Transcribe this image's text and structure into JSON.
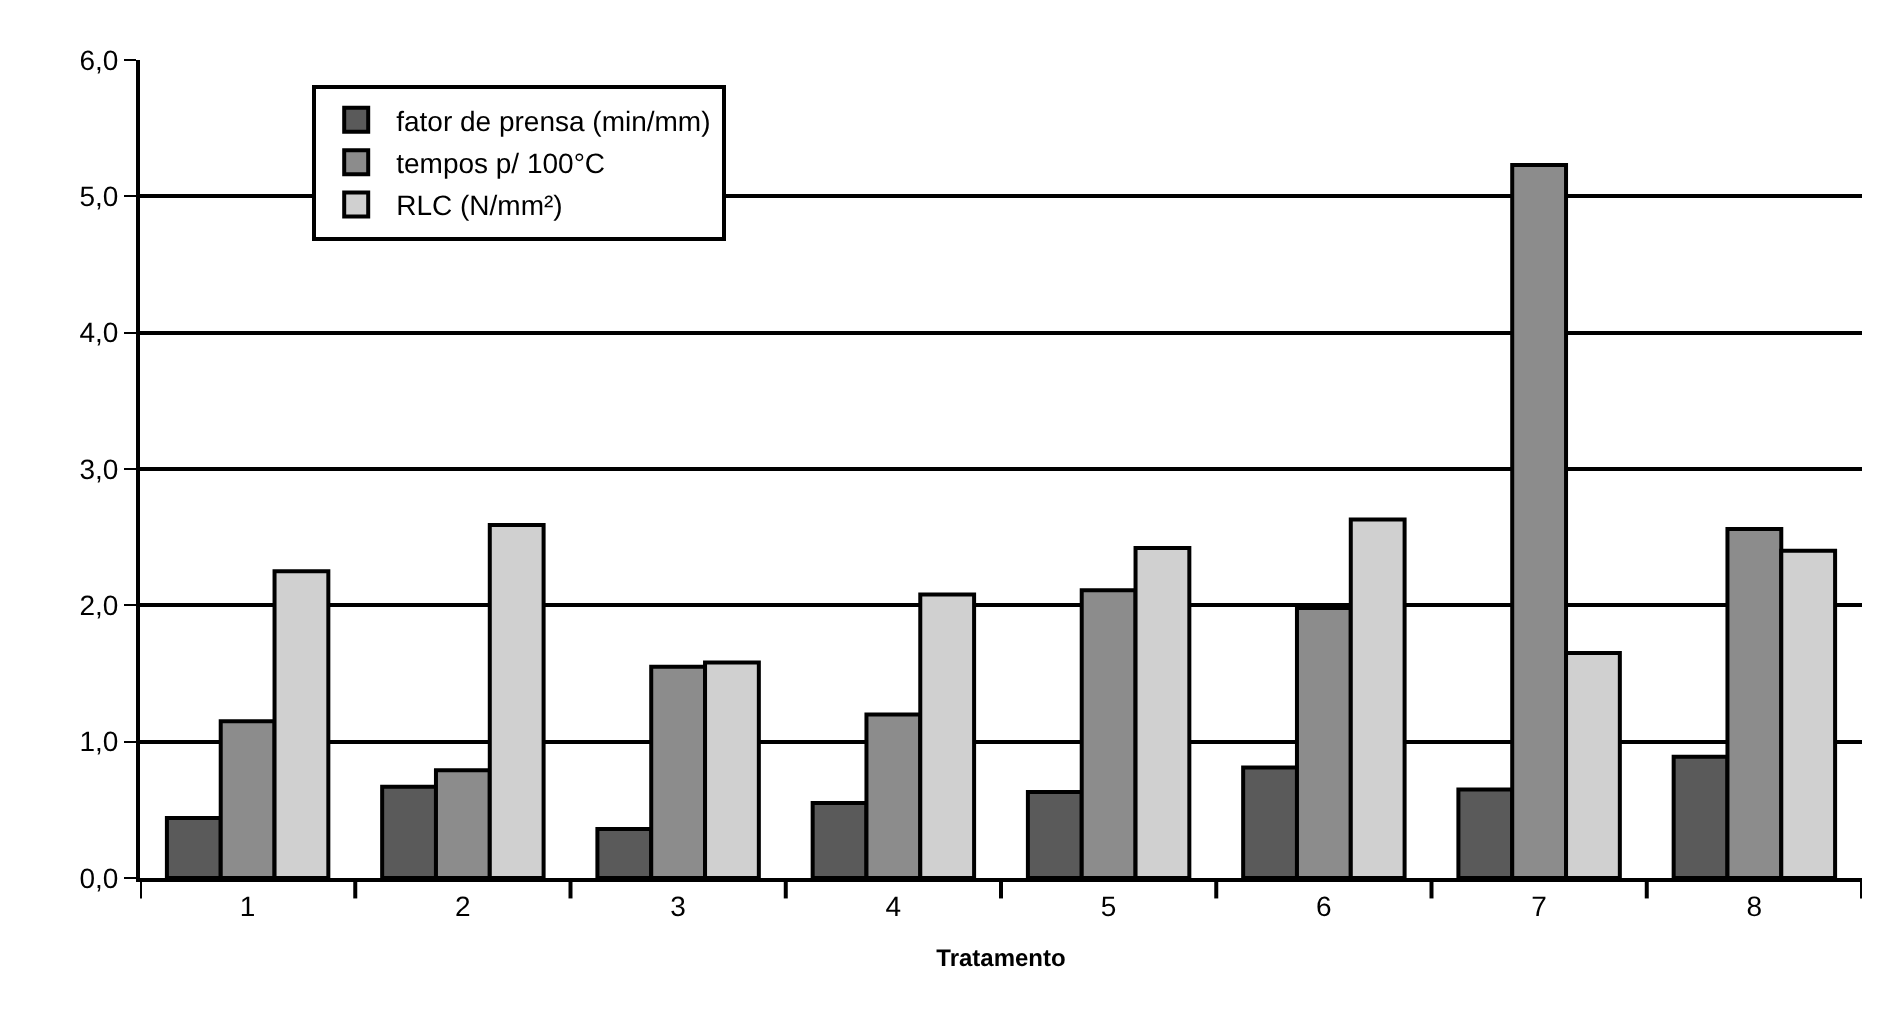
{
  "chart_data": {
    "type": "bar",
    "xlabel": "Tratamento",
    "categories": [
      "1",
      "2",
      "3",
      "4",
      "5",
      "6",
      "7",
      "8"
    ],
    "series": [
      {
        "name": "fator de prensa (min/mm)",
        "color": "#5a5a5a",
        "values": [
          0.44,
          0.67,
          0.36,
          0.55,
          0.63,
          0.81,
          0.65,
          0.89
        ]
      },
      {
        "name": "tempos p/ 100°C",
        "color": "#8c8c8c",
        "values": [
          1.15,
          0.79,
          1.55,
          1.2,
          2.11,
          1.98,
          5.23,
          2.56
        ]
      },
      {
        "name": "RLC (N/mm²)",
        "color": "#d0d0d0",
        "values": [
          2.25,
          2.59,
          1.58,
          2.08,
          2.42,
          2.63,
          1.65,
          2.4
        ]
      }
    ],
    "ylim": [
      0,
      6
    ],
    "yticks": [
      {
        "value": 0,
        "label": "0,0"
      },
      {
        "value": 1,
        "label": "1,0"
      },
      {
        "value": 2,
        "label": "2,0"
      },
      {
        "value": 3,
        "label": "3,0"
      },
      {
        "value": 4,
        "label": "4,0"
      },
      {
        "value": 5,
        "label": "5,0"
      },
      {
        "value": 6,
        "label": "6,0"
      }
    ],
    "grid": "y",
    "legend": "top left"
  }
}
